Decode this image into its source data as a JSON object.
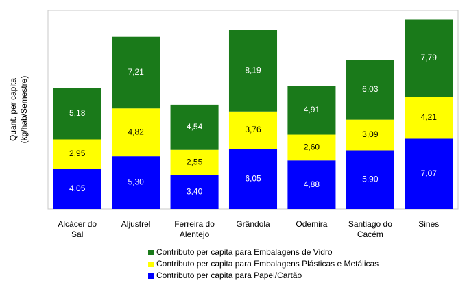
{
  "chart_data": {
    "type": "stacked_bar",
    "y_label": [
      "Quant. per capita",
      "(kg/hab/Semestre)"
    ],
    "categories": [
      "Alcácer do Sal",
      "Aljustrel",
      "Ferreira do Alentejo",
      "Grândola",
      "Odemira",
      "Santiago do Cacém",
      "Sines"
    ],
    "series": [
      {
        "name": "Contributo per capita para Papel/Cartão",
        "color": "#0000ff",
        "label_color": "#ffffff",
        "values": [
          4.05,
          5.3,
          3.4,
          6.05,
          4.88,
          5.9,
          7.07
        ],
        "value_labels": [
          "4,05",
          "5,30",
          "3,40",
          "6,05",
          "4,88",
          "5,90",
          "7,07"
        ]
      },
      {
        "name": "Contributo per capita para Embalagens Plásticas e Metálicas",
        "color": "#ffff00",
        "label_color": "#000000",
        "values": [
          2.95,
          4.82,
          2.55,
          3.76,
          2.6,
          3.09,
          4.21
        ],
        "value_labels": [
          "2,95",
          "4,82",
          "2,55",
          "3,76",
          "2,60",
          "3,09",
          "4,21"
        ]
      },
      {
        "name": "Contributo per capita para Embalagens de Vidro",
        "color": "#1a7a1a",
        "label_color": "#ffffff",
        "values": [
          5.18,
          7.21,
          4.54,
          8.19,
          4.91,
          6.03,
          7.79
        ],
        "value_labels": [
          "5,18",
          "7,21",
          "4,54",
          "8,19",
          "4,91",
          "6,03",
          "7,79"
        ]
      }
    ],
    "ylim": [
      0,
      20
    ]
  }
}
